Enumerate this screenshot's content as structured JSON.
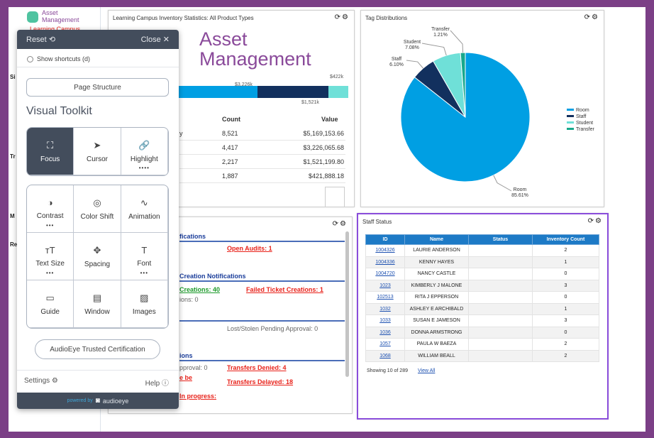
{
  "sidebar": {
    "logo_line1": "Asset",
    "logo_line2": "Management",
    "campus": "Learning Campus",
    "fragments": [
      "Si",
      "Tr",
      "M",
      "Re"
    ]
  },
  "inventory_panel": {
    "title": "Learning Campus Inventory Statistics: All Product Types",
    "brand_line1": "Asset",
    "brand_line2": "Management",
    "bar_labels": [
      "$3,226k",
      "$1,521k",
      "$422k"
    ],
    "bar_colors": [
      "#009fe3",
      "#12305e",
      "#6fe0d8"
    ],
    "table_headers": {
      "count": "Count",
      "value": "Value"
    },
    "row_fragment": "y",
    "rows": [
      {
        "count": "8,521",
        "value": "$5,169,153.66"
      },
      {
        "count": "4,417",
        "value": "$3,226,065.68"
      },
      {
        "count": "2,217",
        "value": "$1,521,199.80"
      },
      {
        "count": "1,887",
        "value": "$421,888.18"
      }
    ]
  },
  "tag_panel": {
    "title": "Tag Distributions"
  },
  "chart_data": {
    "type": "pie",
    "title": "Tag Distributions",
    "start": "12 o'clock, clockwise",
    "slices": [
      {
        "name": "Room",
        "value": 85.61,
        "label": "85.61%",
        "color": "#009fe3"
      },
      {
        "name": "Staff",
        "value": 6.1,
        "label": "6.10%",
        "color": "#12305e"
      },
      {
        "name": "Student",
        "value": 7.08,
        "label": "7.08%",
        "color": "#6fe0d8"
      },
      {
        "name": "Transfer",
        "value": 1.21,
        "label": "1.21%",
        "color": "#18a88c"
      }
    ],
    "legend": "right"
  },
  "notifications_panel": {
    "h1": "fications",
    "open_audits": "Open Audits: 1",
    "h2": "Creation Notifications",
    "creations": "Creations: 40",
    "failed": "Failed Ticket Creations: 1",
    "ions0": "ions: 0",
    "lost": "Lost/Stolen Pending Approval: 0",
    "h3": "ions",
    "pending": "pproval: 0",
    "denied": "Transfers Denied: 4",
    "be": "e be",
    "delayed": "Transfers Delayed: 18",
    "inprogress": "In progress:"
  },
  "staff_panel": {
    "title": "Staff Status",
    "headers": [
      "ID",
      "Name",
      "Status",
      "Inventory Count"
    ],
    "rows": [
      {
        "id": "1004326",
        "name": "LAURIE ANDERSON",
        "status": "",
        "count": "2"
      },
      {
        "id": "1004336",
        "name": "KENNY HAYES",
        "status": "",
        "count": "1"
      },
      {
        "id": "1004720",
        "name": "NANCY CASTLE",
        "status": "",
        "count": "0"
      },
      {
        "id": "1023",
        "name": "KIMBERLY J MALONE",
        "status": "",
        "count": "3"
      },
      {
        "id": "102513",
        "name": "RITA J EPPERSON",
        "status": "",
        "count": "0"
      },
      {
        "id": "1032",
        "name": "ASHLEY E ARCHIBALD",
        "status": "",
        "count": "1"
      },
      {
        "id": "1033",
        "name": "SUSAN E JAMESON",
        "status": "",
        "count": "3"
      },
      {
        "id": "1036",
        "name": "DONNA ARMSTRONG",
        "status": "",
        "count": "0"
      },
      {
        "id": "1057",
        "name": "PAULA W BAEZA",
        "status": "",
        "count": "2"
      },
      {
        "id": "1068",
        "name": "WILLIAM BEALL",
        "status": "",
        "count": "2"
      }
    ],
    "showing": "Showing 10 of 289",
    "view_all": "View All"
  },
  "toolkit": {
    "reset": "Reset",
    "close": "Close",
    "show_shortcuts": "Show shortcuts (d)",
    "page_structure": "Page Structure",
    "heading": "Visual Toolkit",
    "tools_top": [
      {
        "label": "Focus",
        "icon": "focus-icon",
        "glyph": "⛶"
      },
      {
        "label": "Cursor",
        "icon": "cursor-icon",
        "glyph": "➤"
      },
      {
        "label": "Highlight",
        "icon": "link-icon",
        "glyph": "🔗",
        "dots": "••••"
      }
    ],
    "tools": [
      {
        "label": "Contrast",
        "icon": "contrast-icon",
        "glyph": "◑",
        "dots": "•••"
      },
      {
        "label": "Color Shift",
        "icon": "color-shift-icon",
        "glyph": "◎"
      },
      {
        "label": "Animation",
        "icon": "animation-icon",
        "glyph": "∿"
      },
      {
        "label": "Text Size",
        "icon": "text-size-icon",
        "glyph": "ᴛT",
        "dots": "•••"
      },
      {
        "label": "Spacing",
        "icon": "spacing-icon",
        "glyph": "✥"
      },
      {
        "label": "Font",
        "icon": "font-icon",
        "glyph": "T",
        "dots": "•••"
      },
      {
        "label": "Guide",
        "icon": "guide-icon",
        "glyph": "▭"
      },
      {
        "label": "Window",
        "icon": "window-icon",
        "glyph": "▤"
      },
      {
        "label": "Images",
        "icon": "image-icon",
        "glyph": "▨"
      }
    ],
    "certification": "AudioEye Trusted Certification",
    "settings": "Settings",
    "help": "Help",
    "powered_by": "powered by",
    "brand": "audioeye"
  }
}
